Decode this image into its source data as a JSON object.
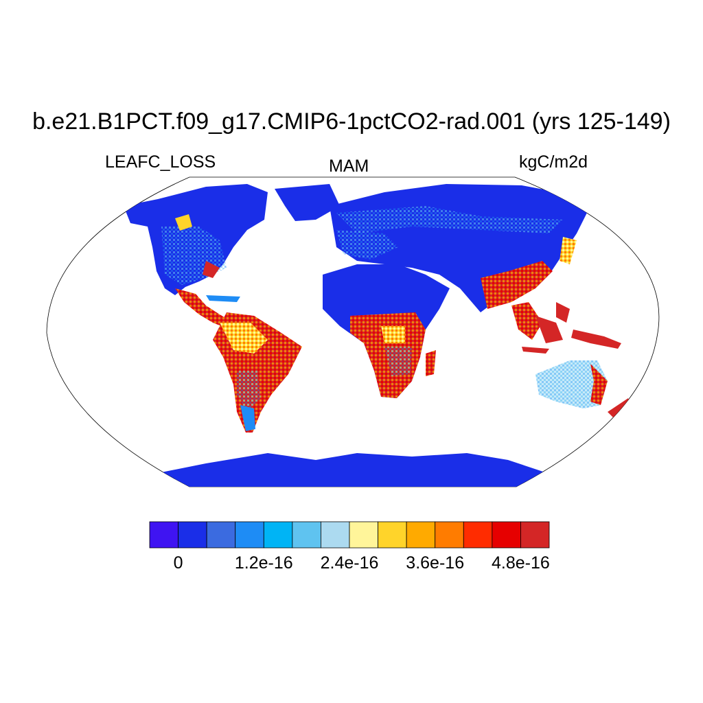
{
  "title": "b.e21.B1PCT.f09_g17.CMIP6-1pctCO2-rad.001 (yrs 125-149)",
  "variable": "LEAFC_LOSS",
  "season": "MAM",
  "units": "kgC/m2d",
  "projection": "Robinson",
  "colorbar": {
    "colors": [
      "#3f14f2",
      "#1a2ee8",
      "#3b6be0",
      "#1e8cf5",
      "#00b4f5",
      "#5fc3f0",
      "#acdaf0",
      "#fff59a",
      "#ffd42a",
      "#ffaa00",
      "#ff7c00",
      "#ff2c00",
      "#e60000",
      "#d42626"
    ],
    "labels": [
      "0",
      "1.2e-16",
      "2.4e-16",
      "3.6e-16",
      "4.8e-16"
    ]
  },
  "land_regions": [
    {
      "name": "North America",
      "level": "low-to-mid"
    },
    {
      "name": "Central America",
      "level": "high"
    },
    {
      "name": "South America",
      "level": "high"
    },
    {
      "name": "Africa (Sahara)",
      "level": "low"
    },
    {
      "name": "Central Africa",
      "level": "high"
    },
    {
      "name": "Eurasia",
      "level": "low"
    },
    {
      "name": "Southeast Asia",
      "level": "high"
    },
    {
      "name": "Australia",
      "level": "mid"
    },
    {
      "name": "Greenland",
      "level": "low"
    },
    {
      "name": "Antarctica",
      "level": "low"
    }
  ]
}
